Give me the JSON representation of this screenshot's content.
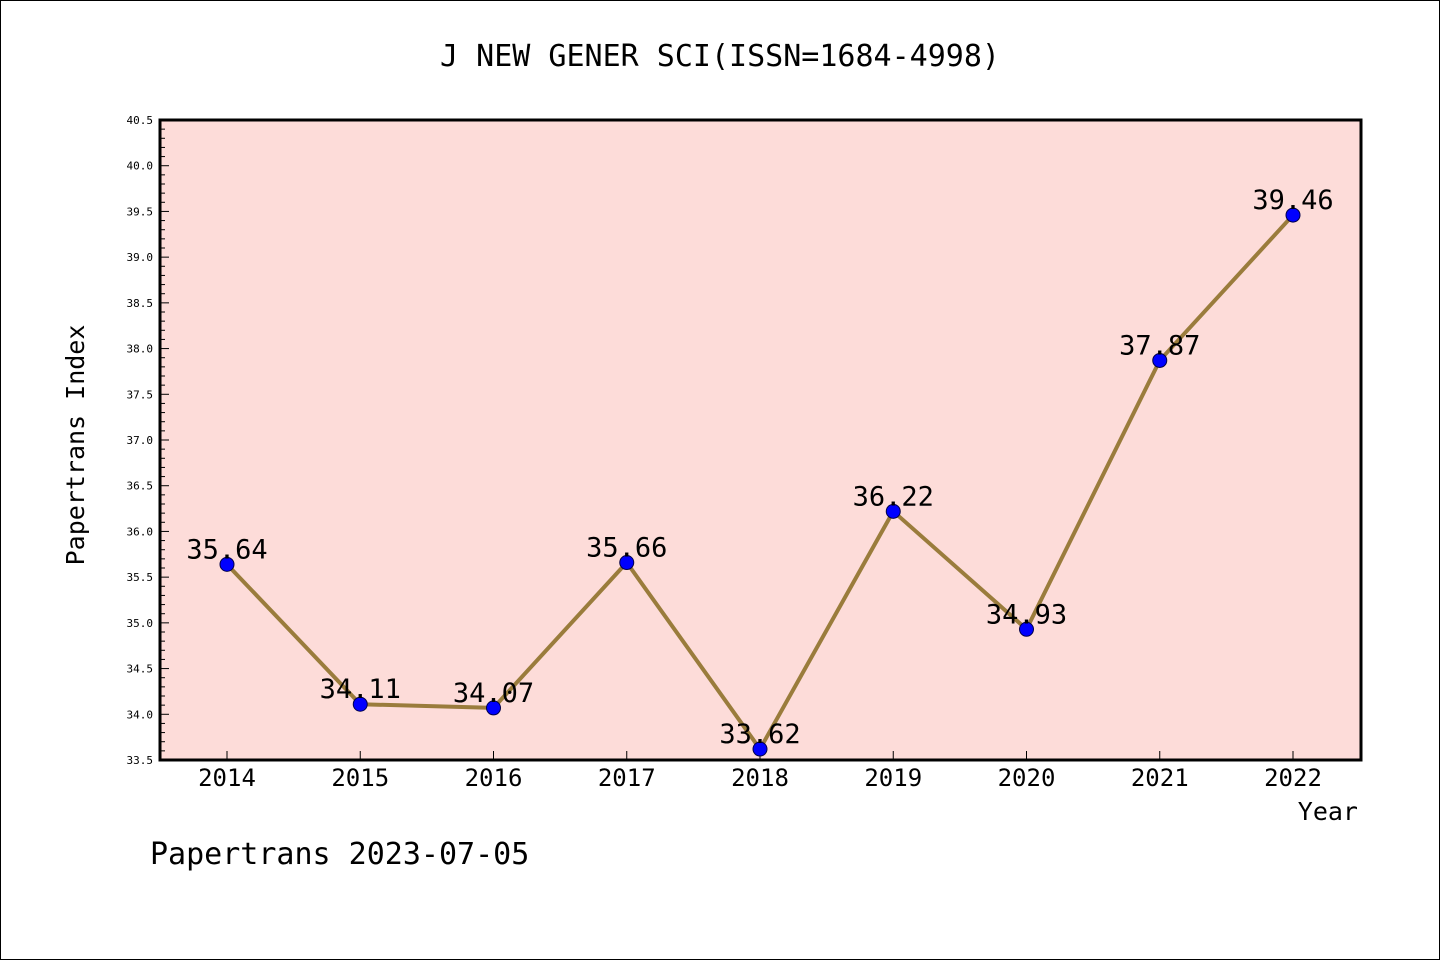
{
  "chart_data": {
    "type": "line",
    "title": "J NEW GENER SCI(ISSN=1684-4998)",
    "xlabel": "Year",
    "ylabel": "Papertrans Index",
    "categories": [
      "2014",
      "2015",
      "2016",
      "2017",
      "2018",
      "2019",
      "2020",
      "2021",
      "2022"
    ],
    "values": [
      35.64,
      34.11,
      34.07,
      35.66,
      33.62,
      36.22,
      34.93,
      37.87,
      39.46
    ],
    "data_labels": [
      "35.64",
      "34.11",
      "34.07",
      "35.66",
      "33.62",
      "36.22",
      "34.93",
      "37.87",
      "39.46"
    ],
    "ylim": [
      33.5,
      40.5
    ],
    "yticks": [
      "33.5",
      "34.0",
      "34.5",
      "35.0",
      "35.5",
      "36.0",
      "36.5",
      "37.0",
      "37.5",
      "38.0",
      "38.5",
      "39.0",
      "39.5",
      "40.0",
      "40.5"
    ],
    "grid": false,
    "colors": {
      "plot_background": "#fddcd9",
      "line": "#9a7c3c",
      "marker": "#0000ff"
    }
  },
  "footer": "Papertrans 2023-07-05"
}
